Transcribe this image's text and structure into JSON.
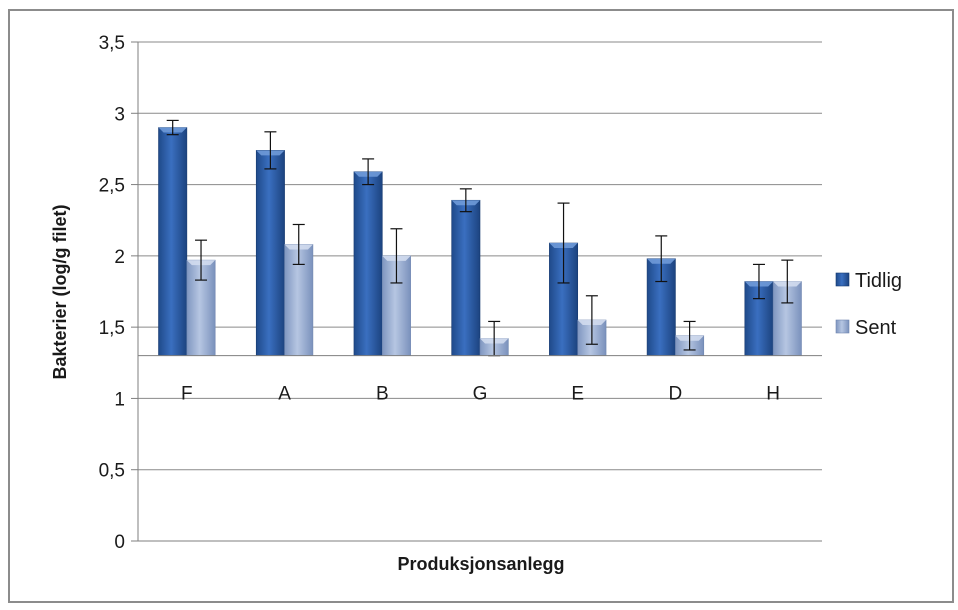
{
  "chart_data": {
    "type": "bar",
    "xlabel": "Produksjonsanlegg",
    "ylabel": "Bakterier (log/g filet)",
    "categories": [
      "F",
      "A",
      "B",
      "G",
      "E",
      "D",
      "H"
    ],
    "ylim": [
      0,
      3.5
    ],
    "yticks": [
      "0",
      "0,5",
      "1",
      "1,5",
      "2",
      "2,5",
      "3",
      "3,5"
    ],
    "bar_base": 1.3,
    "grid": true,
    "legend_position": "right",
    "series": [
      {
        "name": "Tidlig",
        "color": "#2f5fa8",
        "values": [
          2.9,
          2.74,
          2.59,
          2.39,
          2.09,
          1.98,
          1.82
        ],
        "error": [
          0.05,
          0.13,
          0.09,
          0.08,
          0.28,
          0.16,
          0.12
        ]
      },
      {
        "name": "Sent",
        "color": "#9aaed0",
        "values": [
          1.97,
          2.08,
          2.0,
          1.42,
          1.55,
          1.44,
          1.82
        ],
        "error": [
          0.14,
          0.14,
          0.19,
          0.12,
          0.17,
          0.1,
          0.15
        ]
      }
    ]
  }
}
